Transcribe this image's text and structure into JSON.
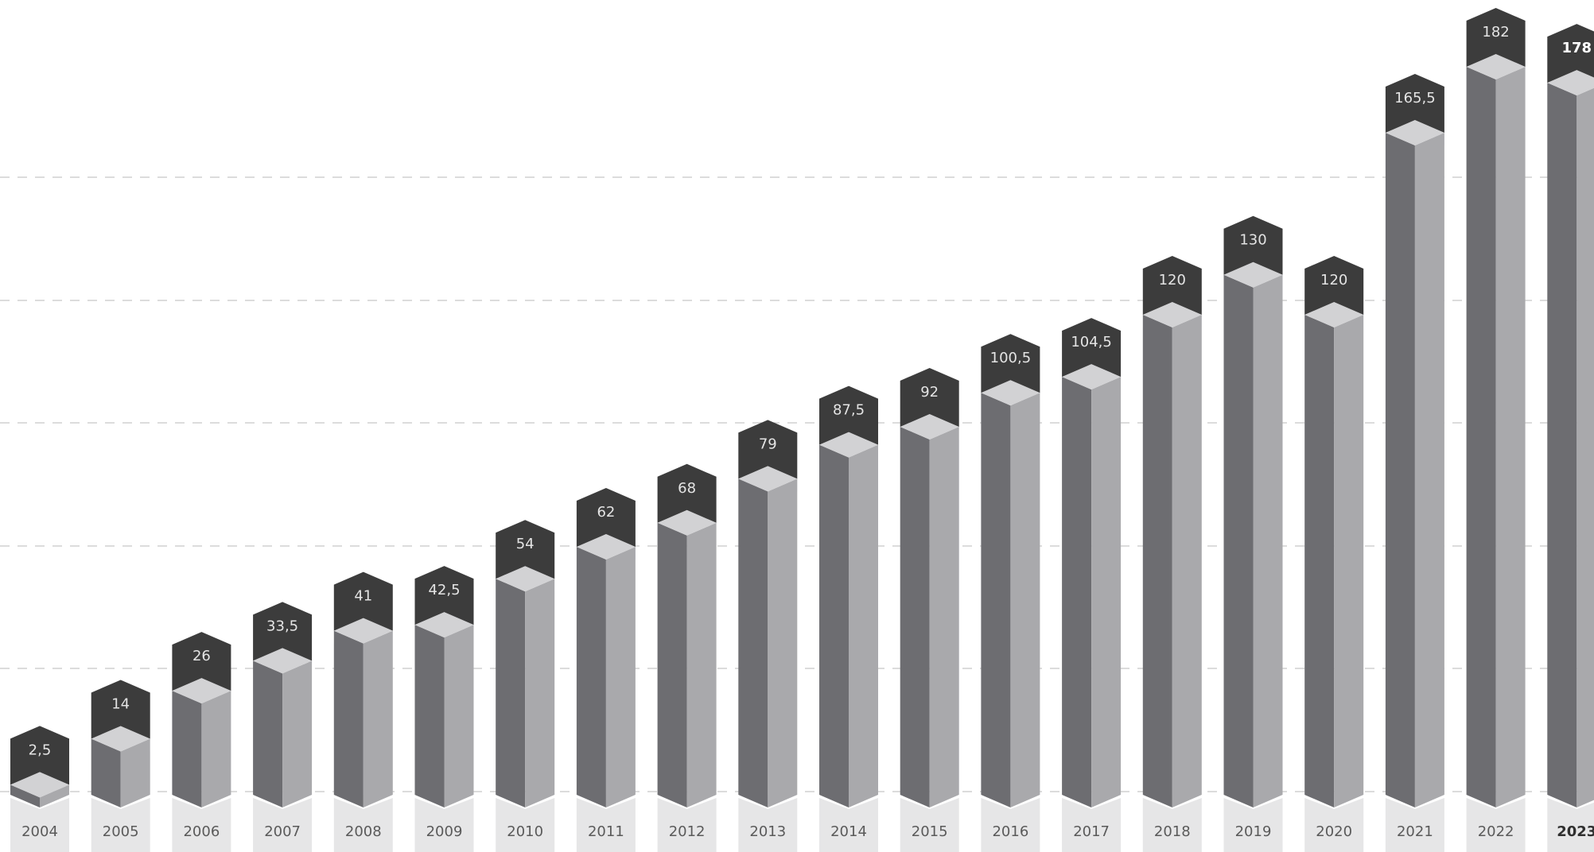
{
  "chart_data": {
    "type": "bar",
    "title": "",
    "xlabel": "",
    "ylabel": "",
    "categories": [
      "2004",
      "2005",
      "2006",
      "2007",
      "2008",
      "2009",
      "2010",
      "2011",
      "2012",
      "2013",
      "2014",
      "2015",
      "2016",
      "2017",
      "2018",
      "2019",
      "2020",
      "2021",
      "2022",
      "2023"
    ],
    "values": [
      2.5,
      14,
      26,
      33.5,
      41,
      42.5,
      54,
      62,
      68,
      79,
      87.5,
      92,
      100.5,
      104.5,
      120,
      130,
      120,
      165.5,
      182,
      178
    ],
    "value_labels": [
      "2,5",
      "14",
      "26",
      "33,5",
      "41",
      "42,5",
      "54",
      "62",
      "68",
      "79",
      "87,5",
      "92",
      "100,5",
      "104,5",
      "120",
      "130",
      "120",
      "165,5",
      "182",
      "178"
    ],
    "highlight_category": "2023",
    "ylim": [
      0,
      182
    ],
    "grid": true,
    "grid_style": "dashed",
    "legend": "none",
    "colors": {
      "bar_left_face": "#6d6d71",
      "bar_right_face": "#a9a9ac",
      "bar_top_face": "#d2d2d4",
      "label_tag": "#3c3c3c",
      "label_text": "#e4e4e4",
      "year_tab": "#e6e6e7",
      "year_text": "#5a5a5a",
      "grid": "#c8c8c8"
    }
  }
}
